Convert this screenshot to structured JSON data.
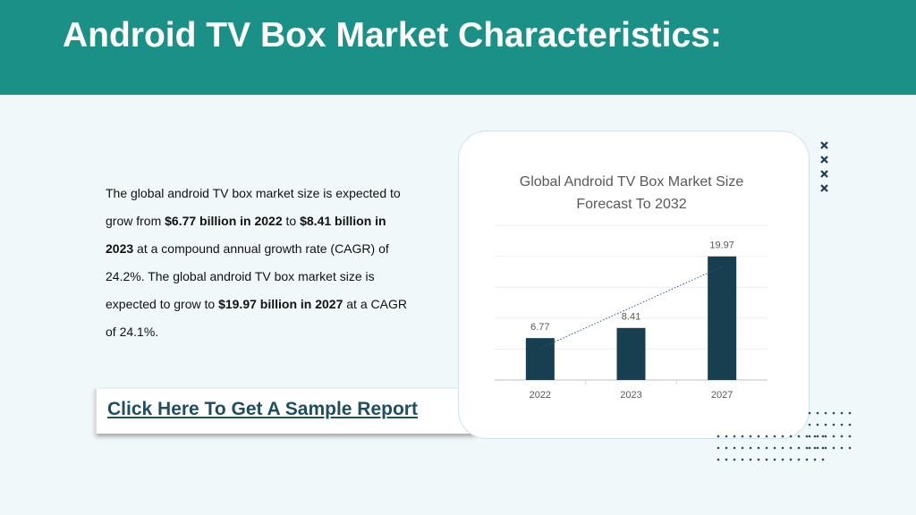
{
  "header": {
    "title": "Android TV Box Market Characteristics:"
  },
  "paragraph": [
    {
      "text": "The global android TV box market size is expected to grow from ",
      "bold": false
    },
    {
      "text": "$6.77 billion in 2022",
      "bold": true
    },
    {
      "text": " to ",
      "bold": false
    },
    {
      "text": "$8.41 billion in 2023",
      "bold": true
    },
    {
      "text": " at a compound annual growth rate (CAGR) of 24.2%. The global android TV box market size is expected to grow to ",
      "bold": false
    },
    {
      "text": "$19.97 billion in 2027",
      "bold": true
    },
    {
      "text": " at a CAGR of 24.1%.",
      "bold": false
    }
  ],
  "button": {
    "label": "Click Here To Get A Sample Report"
  },
  "chart_data": {
    "type": "bar",
    "title": "Global Android TV Box Market Size Forecast To 2032",
    "categories": [
      "2022",
      "2023",
      "2027"
    ],
    "values": [
      6.77,
      8.41,
      19.97
    ],
    "color": "#173f50",
    "ylim": [
      0,
      25
    ],
    "yticks": [
      0,
      5,
      10,
      15,
      20,
      25
    ],
    "grid": true,
    "trendline": true
  }
}
